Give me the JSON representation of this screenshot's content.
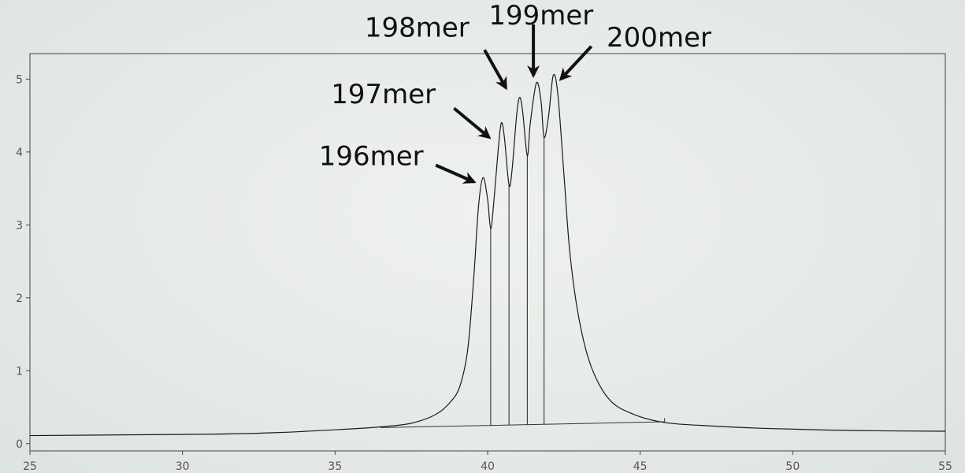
{
  "chart_data": {
    "type": "line",
    "title": "",
    "xlabel": "",
    "ylabel": "",
    "xlim": [
      25,
      55
    ],
    "ylim": [
      -0.1,
      5.35
    ],
    "x_ticks": [
      25,
      30,
      35,
      40,
      45,
      50,
      55
    ],
    "y_ticks": [
      0,
      1,
      2,
      3,
      4,
      5
    ],
    "grid": false,
    "series": [
      {
        "color": "#1a1a1a",
        "points": [
          [
            25.0,
            0.11
          ],
          [
            28.0,
            0.12
          ],
          [
            31.0,
            0.13
          ],
          [
            33.0,
            0.15
          ],
          [
            35.0,
            0.19
          ],
          [
            36.5,
            0.23
          ],
          [
            37.5,
            0.28
          ],
          [
            38.3,
            0.4
          ],
          [
            38.8,
            0.58
          ],
          [
            39.1,
            0.8
          ],
          [
            39.35,
            1.3
          ],
          [
            39.55,
            2.3
          ],
          [
            39.7,
            3.25
          ],
          [
            39.85,
            3.65
          ],
          [
            40.0,
            3.35
          ],
          [
            40.1,
            2.95
          ],
          [
            40.2,
            3.3
          ],
          [
            40.35,
            4.05
          ],
          [
            40.45,
            4.4
          ],
          [
            40.55,
            4.2
          ],
          [
            40.7,
            3.55
          ],
          [
            40.8,
            3.75
          ],
          [
            40.95,
            4.5
          ],
          [
            41.05,
            4.75
          ],
          [
            41.15,
            4.55
          ],
          [
            41.3,
            3.95
          ],
          [
            41.4,
            4.4
          ],
          [
            41.6,
            4.95
          ],
          [
            41.75,
            4.7
          ],
          [
            41.85,
            4.2
          ],
          [
            42.0,
            4.5
          ],
          [
            42.15,
            5.05
          ],
          [
            42.3,
            4.8
          ],
          [
            42.5,
            3.7
          ],
          [
            42.7,
            2.6
          ],
          [
            43.0,
            1.7
          ],
          [
            43.4,
            1.05
          ],
          [
            44.0,
            0.6
          ],
          [
            44.8,
            0.4
          ],
          [
            45.8,
            0.29
          ],
          [
            47.0,
            0.25
          ],
          [
            49.0,
            0.21
          ],
          [
            52.0,
            0.18
          ],
          [
            55.0,
            0.17
          ]
        ]
      }
    ],
    "baseline": [
      [
        36.5,
        0.22
      ],
      [
        40.1,
        0.25
      ],
      [
        45.8,
        0.3
      ]
    ],
    "baseline_ticks": [
      [
        36.5,
        0.24
      ],
      [
        45.8,
        0.35
      ]
    ],
    "peak_dividers": [
      40.1,
      40.7,
      41.3,
      41.85
    ],
    "annotations": [
      {
        "label": "196mer",
        "text_at": [
          37.9,
          3.82
        ],
        "arrow_from": [
          38.3,
          3.82
        ],
        "arrow_to": [
          39.55,
          3.59
        ]
      },
      {
        "label": "197mer",
        "text_at": [
          38.3,
          4.67
        ],
        "arrow_from": [
          38.9,
          4.6
        ],
        "arrow_to": [
          40.05,
          4.2
        ]
      },
      {
        "label": "198mer",
        "text_at": [
          39.4,
          5.58
        ],
        "arrow_from": [
          39.9,
          5.4
        ],
        "arrow_to": [
          40.6,
          4.88
        ]
      },
      {
        "label": "199mer",
        "text_at": [
          41.75,
          5.75
        ],
        "arrow_from": [
          41.5,
          5.75
        ],
        "arrow_to": [
          41.5,
          5.05
        ]
      },
      {
        "label": "200mer",
        "text_at": [
          43.9,
          5.45
        ],
        "arrow_from": [
          43.4,
          5.45
        ],
        "arrow_to": [
          42.4,
          5.0
        ]
      }
    ]
  }
}
